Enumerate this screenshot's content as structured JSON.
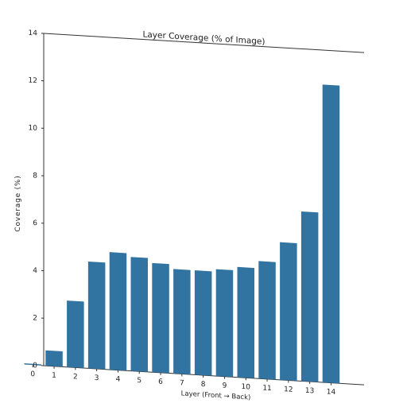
{
  "chart_data": {
    "type": "bar",
    "title": "Layer Coverage (% of Image)",
    "xlabel": "Layer (Front → Back)",
    "ylabel": "Coverage (%)",
    "categories": [
      "0",
      "1",
      "2",
      "3",
      "4",
      "5",
      "6",
      "7",
      "8",
      "9",
      "10",
      "11",
      "12",
      "13",
      "14"
    ],
    "values": [
      0.05,
      0.65,
      2.8,
      4.5,
      4.95,
      4.8,
      4.6,
      4.4,
      4.4,
      4.5,
      4.65,
      4.95,
      5.8,
      7.15,
      12.55
    ],
    "ylim": [
      0,
      14
    ],
    "yticks": [
      "0",
      "2",
      "4",
      "6",
      "8",
      "10",
      "12",
      "14"
    ],
    "grid": false,
    "legend": "none",
    "colors": {
      "bar": "#3274a1",
      "axis": "#333333"
    }
  }
}
